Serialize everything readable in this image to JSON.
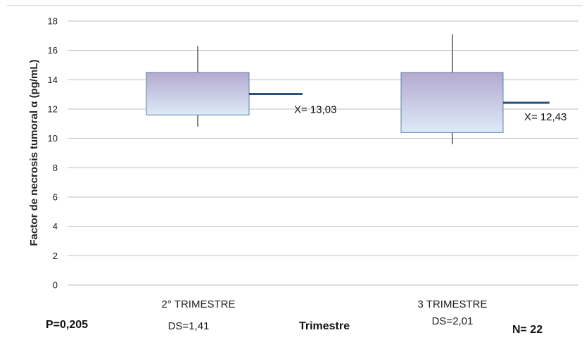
{
  "chart_data": {
    "type": "box",
    "ylabel": "Factor de necrosis tumoral α (pg/mL)",
    "xlabel": "Trimestre",
    "ylim": [
      0,
      18
    ],
    "yticks": [
      "0",
      "2",
      "4",
      "6",
      "8",
      "10",
      "12",
      "14",
      "16",
      "18"
    ],
    "grid": true,
    "categories": [
      "2° TRIMESTRE",
      "3 TRIMESTRE"
    ],
    "boxes": [
      {
        "category": "2° TRIMESTRE",
        "min": 10.8,
        "q1": 11.6,
        "q3": 14.5,
        "max": 16.3,
        "mean": 13.03,
        "mean_label": "X= 13,03",
        "sd_label": "DS=1,41"
      },
      {
        "category": "3 TRIMESTRE",
        "min": 9.6,
        "q1": 10.4,
        "q3": 14.5,
        "max": 17.1,
        "mean": 12.43,
        "mean_label": "X= 12,43",
        "sd_label": "DS=2,01"
      }
    ],
    "p_label": "P=0,205",
    "n_label": "N= 22",
    "colors": {
      "box_top": "#b4a9cf",
      "box_bottom": "#dcebf8",
      "box_border": "#5b7fb2",
      "mean_line": "#2b4f81",
      "grid": "#bfbfbf"
    }
  }
}
